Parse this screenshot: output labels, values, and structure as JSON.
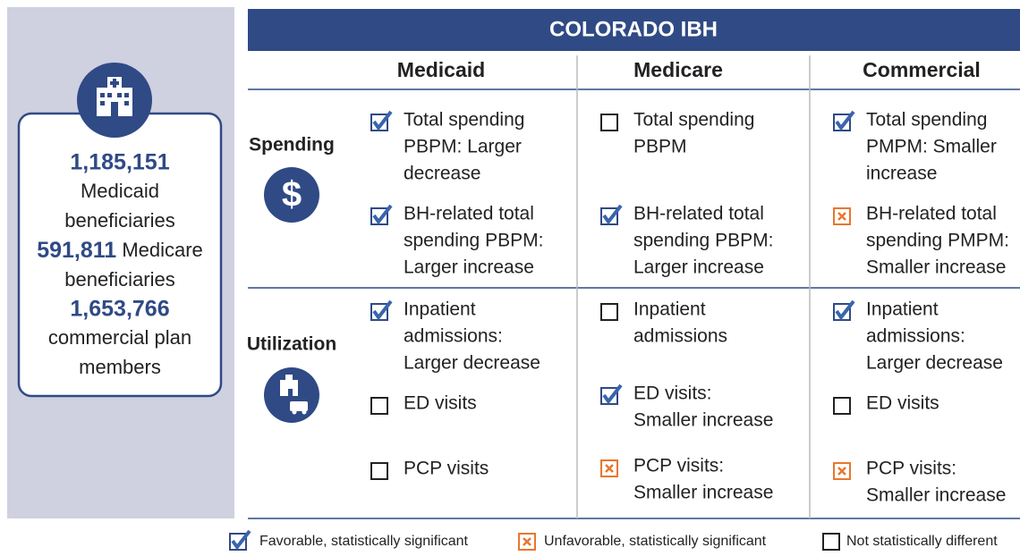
{
  "sidebar": {
    "stats": [
      {
        "number": "1,185,151",
        "label": [
          "Medicaid",
          "beneficiaries"
        ]
      },
      {
        "number": "591,811",
        "label": [
          "Medicare",
          "beneficiaries"
        ]
      },
      {
        "number": "1,653,766",
        "label": [
          "commercial plan",
          "members"
        ]
      }
    ]
  },
  "table": {
    "title": "COLORADO IBH",
    "columns": [
      "Medicaid",
      "Medicare",
      "Commercial"
    ],
    "rows": [
      {
        "label": "Spending",
        "cells": [
          [
            {
              "lines": [
                "Total spending",
                "PBPM: Larger",
                "decrease"
              ],
              "status": 0
            },
            {
              "lines": [
                "BH-related total",
                "spending PBPM:",
                "Larger increase"
              ],
              "status": 0
            }
          ],
          [
            {
              "lines": [
                "Total spending",
                "PBPM"
              ],
              "status": 2
            },
            {
              "lines": [
                "BH-related total",
                "spending PBPM:",
                "Larger increase"
              ],
              "status": 0
            }
          ],
          [
            {
              "lines": [
                "Total spending",
                "PMPM: Smaller",
                "increase"
              ],
              "status": 0
            },
            {
              "lines": [
                "BH-related total",
                "spending PMPM:",
                "Smaller increase"
              ],
              "status": 1
            }
          ]
        ]
      },
      {
        "label": "Utilization",
        "cells": [
          [
            {
              "lines": [
                "Inpatient",
                "admissions:",
                "Larger decrease"
              ],
              "status": 0
            },
            {
              "lines": [
                "ED visits"
              ],
              "status": 2
            },
            {
              "lines": [
                "PCP visits"
              ],
              "status": 2
            }
          ],
          [
            {
              "lines": [
                "Inpatient",
                "admissions"
              ],
              "status": 2
            },
            {
              "lines": [
                "ED visits:",
                "Smaller increase"
              ],
              "status": 0
            },
            {
              "lines": [
                "PCP visits:",
                "Smaller increase"
              ],
              "status": 1
            }
          ],
          [
            {
              "lines": [
                "Inpatient",
                "admissions:",
                "Larger decrease"
              ],
              "status": 0
            },
            {
              "lines": [
                "ED visits"
              ],
              "status": 2
            },
            {
              "lines": [
                "PCP visits:",
                "Smaller increase"
              ],
              "status": 1
            }
          ]
        ]
      }
    ]
  },
  "legend": [
    {
      "label": "Favorable, statistically significant"
    },
    {
      "label": "Unfavorable, statistically significant"
    },
    {
      "label": "Not statistically different"
    }
  ]
}
